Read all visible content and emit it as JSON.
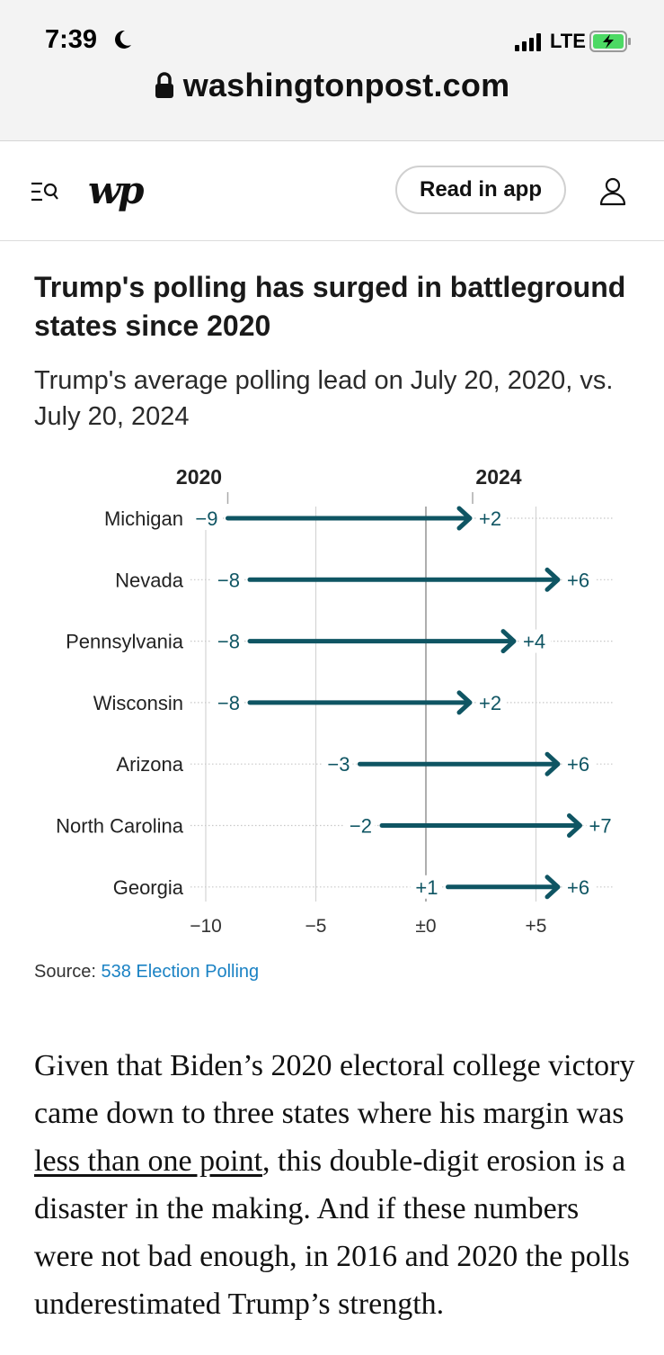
{
  "status_bar": {
    "time": "7:39",
    "network": "LTE"
  },
  "browser": {
    "url": "washingtonpost.com"
  },
  "nav": {
    "logo_text": "wp",
    "read_in_app": "Read in app"
  },
  "article": {
    "headline": "Trump's polling has surged in battleground states since 2020",
    "dek": "Trump's average polling lead on July 20, 2020, vs. July 20, 2024",
    "source_label": "Source:",
    "source_link": "538 Election Polling",
    "body_part1": "Given that Biden’s 2020 electoral college victory came down to three states where his margin was ",
    "body_link": "less than one point",
    "body_part2": ", this double-digit erosion is a disaster in the making. And if these numbers were not bad enough, in 2016 and 2020 the polls underestimated Trump’s strength."
  },
  "chart_data": {
    "type": "dumbbell",
    "start_label": "2020",
    "end_label": "2024",
    "x_ticks": [
      "−10",
      "−5",
      "±0",
      "+5"
    ],
    "x_tick_values": [
      -10,
      -5,
      0,
      5
    ],
    "xlim": [
      -10,
      7
    ],
    "color": "#0f5563",
    "rows": [
      {
        "state": "Michigan",
        "y2020": -9,
        "y2024": 2,
        "label2020": "−9",
        "label2024": "+2"
      },
      {
        "state": "Nevada",
        "y2020": -8,
        "y2024": 6,
        "label2020": "−8",
        "label2024": "+6"
      },
      {
        "state": "Pennsylvania",
        "y2020": -8,
        "y2024": 4,
        "label2020": "−8",
        "label2024": "+4"
      },
      {
        "state": "Wisconsin",
        "y2020": -8,
        "y2024": 2,
        "label2020": "−8",
        "label2024": "+2"
      },
      {
        "state": "Arizona",
        "y2020": -3,
        "y2024": 6,
        "label2020": "−3",
        "label2024": "+6"
      },
      {
        "state": "North Carolina",
        "y2020": -2,
        "y2024": 7,
        "label2020": "−2",
        "label2024": "+7"
      },
      {
        "state": "Georgia",
        "y2020": 1,
        "y2024": 6,
        "label2020": "+1",
        "label2024": "+6"
      }
    ]
  }
}
